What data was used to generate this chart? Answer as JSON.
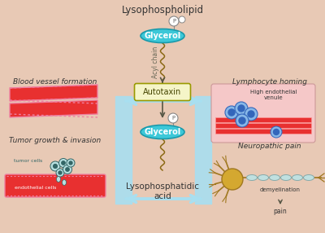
{
  "bg_color": "#e8c9b5",
  "title_top": "Lysophospholipid",
  "glycerol_color": "#3cc8d8",
  "autotaxin_bg": "#f5f5c8",
  "autotaxin_border": "#999900",
  "arrow_color": "#a8dff0",
  "dark_arrow": "#555544",
  "acyl_chain_text": "Acyl chain",
  "lpa_text": "Lysophosphatidic\nacid",
  "blood_vessel_title": "Blood vessel formation",
  "tumor_title": "Tumor growth & invasion",
  "lymphocyte_title": "Lymphocyte homing",
  "neuropathic_title": "Neuropathic pain",
  "vessel_red": "#e83030",
  "vessel_pink_border": "#ee80a0",
  "lymph_bg": "#f5c8c8",
  "lymph_stripe": "#e83030",
  "cell_blue": "#88b8e8",
  "cell_blue_dark": "#3366bb",
  "neuron_body": "#d4a830",
  "neuron_dark": "#a07820",
  "myelin_color": "#c0e0e0",
  "myelin_border": "#88aaaa",
  "text_dark": "#333333",
  "text_teal": "#336666"
}
